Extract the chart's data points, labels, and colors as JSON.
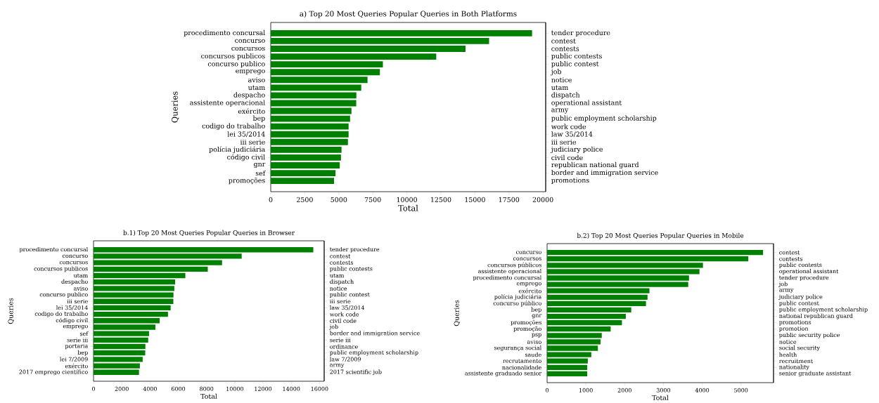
{
  "chart_data": [
    {
      "type": "bar",
      "orientation": "horizontal",
      "title": "a) Top 20 Most Queries Popular Queries in Both Platforms",
      "xlabel": "Total",
      "ylabel": "Queries",
      "color": "#008000",
      "categories": [
        "procedimento concursal",
        "concurso",
        "concursos",
        "concursos publicos",
        "concurso publico",
        "emprego",
        "aviso",
        "utam",
        "despacho",
        "assistente operacional",
        "exército",
        "bep",
        "codigo do trabalho",
        "lei 35/2014",
        "iii serie",
        "polícia judiciária",
        "código civil",
        "gnr",
        "sef",
        "promoções"
      ],
      "y2_categories": [
        "tender procedure",
        "contest",
        "contests",
        "public contests",
        "public contest",
        "job",
        "notice",
        "utam",
        "dispatch",
        "operational assistant",
        "army",
        "public employment scholarship",
        "work code",
        "law 35/2014",
        "iii serie",
        "judiciary police",
        "civil code",
        "republican national guard",
        "border and immigration service",
        "promotions"
      ],
      "values": [
        19200,
        16040,
        14310,
        12160,
        8240,
        8020,
        7110,
        6650,
        6290,
        6280,
        5930,
        5830,
        5720,
        5720,
        5670,
        5200,
        5160,
        5070,
        4760,
        4650
      ],
      "xlim": [
        0,
        20200
      ],
      "xticks": [
        0,
        2500,
        5000,
        7500,
        10000,
        12500,
        15000,
        17500,
        20000
      ]
    },
    {
      "type": "bar",
      "orientation": "horizontal",
      "title": "b.1) Top 20 Most Queries Popular Queries in Browser",
      "xlabel": "Total",
      "ylabel": "Queries",
      "color": "#008000",
      "categories": [
        "procedimento concursal",
        "concurso",
        "concursos",
        "concursos publicos",
        "utam",
        "despacho",
        "aviso",
        "concurso publico",
        "iii serie",
        "lei 35/2014",
        "codigo do trabalho",
        "código civil",
        "emprego",
        "sef",
        "serie iii",
        "portaria",
        "bep",
        "lei 7/2009",
        "exército",
        "2017 emprego científico"
      ],
      "y2_categories": [
        "tender procedure",
        "contest",
        "contests",
        "public contests",
        "utam",
        "dispatch",
        "notice",
        "public contest",
        "iii serie",
        "law 35/2014",
        "work code",
        "civil code",
        "job",
        "border and immigration service",
        "serie iii",
        "ordinance",
        "public employment scholarship",
        "law 7/2009",
        "army",
        "2017 scientific job"
      ],
      "values": [
        15560,
        10490,
        9100,
        8090,
        6500,
        5780,
        5720,
        5660,
        5650,
        5460,
        5270,
        4680,
        4380,
        3930,
        3870,
        3670,
        3660,
        3480,
        3280,
        3220
      ],
      "xlim": [
        0,
        16330
      ],
      "xticks": [
        0,
        2000,
        4000,
        6000,
        8000,
        10000,
        12000,
        14000,
        16000
      ]
    },
    {
      "type": "bar",
      "orientation": "horizontal",
      "title": "b.2) Top 20 Most Queries Popular Queries in Mobile",
      "xlabel": "Total",
      "ylabel": "Queries",
      "color": "#008000",
      "categories": [
        "concurso",
        "concursos",
        "concursos públicos",
        "assistente operacional",
        "procedimento concursal",
        "emprego",
        "exército",
        "polícia judiciária",
        "concurso público",
        "bep",
        "gnr",
        "promoções",
        "promoção",
        "psp",
        "aviso",
        "segurança social",
        "saude",
        "recrutamento",
        "nacionalidade",
        "assistente graduado senior"
      ],
      "y2_categories": [
        "contest",
        "contests",
        "public contests",
        "operational assistant",
        "tender procedure",
        "job",
        "army",
        "judiciary police",
        "public contest",
        "public employment scholarship",
        "national republican guard",
        "promotions",
        "promotion",
        "public security police",
        "notice",
        "social security",
        "health",
        "recruitment",
        "nationality",
        "senior graduate assistant"
      ],
      "values": [
        5570,
        5190,
        4020,
        3930,
        3660,
        3640,
        2640,
        2590,
        2550,
        2170,
        2030,
        1930,
        1640,
        1410,
        1380,
        1310,
        1140,
        1050,
        1035,
        1035
      ],
      "xlim": [
        0,
        5840
      ],
      "xticks": [
        0,
        1000,
        2000,
        3000,
        4000,
        5000
      ]
    }
  ]
}
